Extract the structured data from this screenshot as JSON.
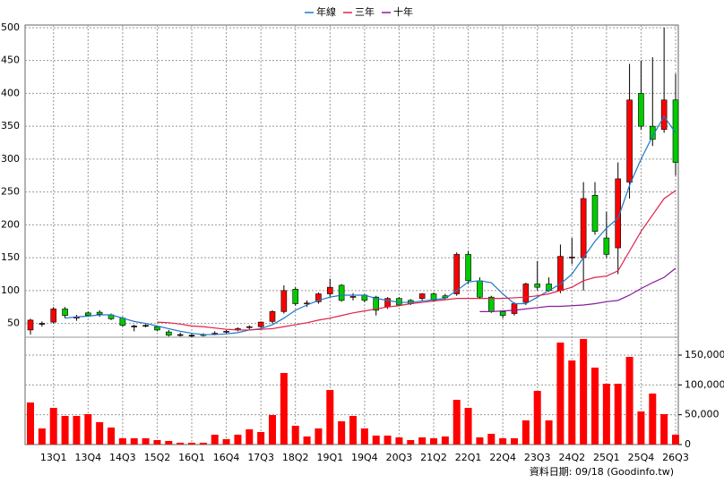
{
  "chart_data": [
    {
      "type": "candlestick",
      "up_color": "#ff0000",
      "down_color": "#00cc00",
      "open": [
        40,
        50,
        52,
        72,
        58,
        66,
        67,
        63,
        58,
        46,
        47,
        45,
        37,
        33,
        32,
        33,
        34,
        37,
        40,
        44,
        45,
        53,
        68,
        102,
        80,
        83,
        95,
        108,
        90,
        93,
        90,
        75,
        88,
        85,
        88,
        95,
        92,
        95,
        155,
        115,
        90,
        68,
        65,
        82,
        110,
        110,
        100,
        150,
        150,
        245,
        180,
        165,
        265,
        400,
        350,
        345,
        390
      ],
      "high": [
        57,
        53,
        75,
        75,
        63,
        68,
        70,
        65,
        60,
        48,
        49,
        47,
        40,
        36,
        35,
        35,
        38,
        40,
        44,
        47,
        53,
        70,
        108,
        105,
        85,
        97,
        118,
        110,
        96,
        95,
        92,
        90,
        90,
        87,
        96,
        97,
        95,
        158,
        160,
        120,
        92,
        70,
        82,
        112,
        145,
        120,
        170,
        180,
        265,
        265,
        220,
        295,
        445,
        450,
        455,
        500,
        430
      ],
      "low": [
        33,
        45,
        50,
        58,
        54,
        60,
        60,
        55,
        45,
        38,
        44,
        38,
        30,
        30,
        29,
        30,
        32,
        35,
        38,
        41,
        43,
        50,
        65,
        77,
        75,
        80,
        90,
        83,
        85,
        82,
        62,
        72,
        76,
        78,
        85,
        83,
        86,
        92,
        110,
        87,
        66,
        58,
        62,
        78,
        100,
        98,
        96,
        140,
        100,
        185,
        150,
        125,
        240,
        345,
        320,
        340,
        275
      ],
      "close": [
        55,
        50,
        72,
        62,
        60,
        62,
        64,
        57,
        47,
        46,
        47,
        40,
        32,
        33,
        32,
        32,
        35,
        38,
        42,
        45,
        52,
        68,
        100,
        80,
        81,
        95,
        105,
        85,
        91,
        85,
        70,
        88,
        78,
        80,
        95,
        85,
        89,
        155,
        115,
        90,
        68,
        62,
        80,
        110,
        105,
        100,
        152,
        151,
        240,
        190,
        155,
        270,
        390,
        350,
        330,
        390,
        295
      ],
      "series": [
        {
          "name": "年線",
          "color": "#1e78c8",
          "values": [
            null,
            null,
            null,
            58,
            60,
            61,
            63,
            63,
            58,
            53,
            50,
            46,
            42,
            38,
            35,
            33,
            33,
            34,
            36,
            40,
            42,
            48,
            58,
            70,
            78,
            85,
            90,
            93,
            93,
            93,
            88,
            85,
            82,
            82,
            84,
            86,
            88,
            100,
            113,
            115,
            112,
            95,
            80,
            80,
            90,
            100,
            110,
            125,
            150,
            175,
            195,
            210,
            260,
            300,
            335,
            365,
            340
          ]
        },
        {
          "name": "三年",
          "color": "#e0204a",
          "values": [
            null,
            null,
            null,
            null,
            null,
            null,
            null,
            null,
            null,
            null,
            null,
            52,
            51,
            49,
            46,
            45,
            43,
            41,
            40,
            40,
            41,
            42,
            45,
            48,
            51,
            55,
            58,
            62,
            66,
            69,
            72,
            75,
            77,
            80,
            82,
            84,
            86,
            88,
            88,
            88,
            88,
            88,
            89,
            90,
            92,
            95,
            100,
            105,
            115,
            120,
            122,
            130,
            160,
            190,
            215,
            240,
            252
          ]
        },
        {
          "name": "十年",
          "color": "#8a1aa0",
          "values": [
            null,
            null,
            null,
            null,
            null,
            null,
            null,
            null,
            null,
            null,
            null,
            null,
            null,
            null,
            null,
            null,
            null,
            null,
            null,
            null,
            null,
            null,
            null,
            null,
            null,
            null,
            null,
            null,
            null,
            null,
            null,
            null,
            null,
            null,
            null,
            null,
            null,
            null,
            null,
            68,
            68,
            69,
            70,
            72,
            74,
            76,
            76,
            77,
            78,
            80,
            83,
            85,
            93,
            103,
            112,
            120,
            134
          ]
        }
      ],
      "ylim": [
        29,
        504
      ],
      "yticks": [
        50,
        100,
        150,
        200,
        250,
        300,
        350,
        400,
        450,
        500
      ],
      "grid": true
    },
    {
      "type": "bar",
      "color": "#ff0000",
      "categories": [
        null,
        null,
        "13Q1",
        null,
        null,
        "13Q4",
        null,
        null,
        "14Q3",
        null,
        null,
        "15Q2",
        null,
        null,
        "16Q1",
        null,
        null,
        "16Q4",
        null,
        null,
        "17Q3",
        null,
        null,
        "18Q2",
        null,
        null,
        "19Q1",
        null,
        null,
        "19Q4",
        null,
        null,
        "20Q3",
        null,
        null,
        "21Q2",
        null,
        null,
        "22Q1",
        null,
        null,
        "22Q4",
        null,
        null,
        "23Q3",
        null,
        null,
        "24Q2",
        null,
        null,
        "25Q1",
        null,
        null,
        "25Q4",
        null,
        null,
        "26Q3"
      ],
      "values": [
        70500,
        27000,
        61500,
        48000,
        48000,
        51000,
        37500,
        28500,
        10500,
        10500,
        10500,
        7500,
        6000,
        3000,
        3000,
        3000,
        16500,
        9000,
        16500,
        25500,
        21000,
        49500,
        120000,
        31500,
        13500,
        27000,
        91500,
        39000,
        48000,
        27000,
        15000,
        15000,
        12000,
        7500,
        12000,
        10500,
        13500,
        75000,
        61500,
        12000,
        18000,
        10500,
        10500,
        40500,
        90000,
        40500,
        171000,
        141000,
        177000,
        129000,
        102000,
        102000,
        147000,
        55500,
        85500,
        51000,
        16500
      ],
      "ylim": [
        0,
        180000
      ],
      "yticks": [
        0,
        {
          "value": 50000,
          "label": "50,000"
        },
        {
          "value": 100000,
          "label": "100,000"
        },
        {
          "value": 150000,
          "label": "150,000"
        }
      ],
      "annotation": "資料日期: 09/18 (Goodinfo.tw)"
    }
  ]
}
